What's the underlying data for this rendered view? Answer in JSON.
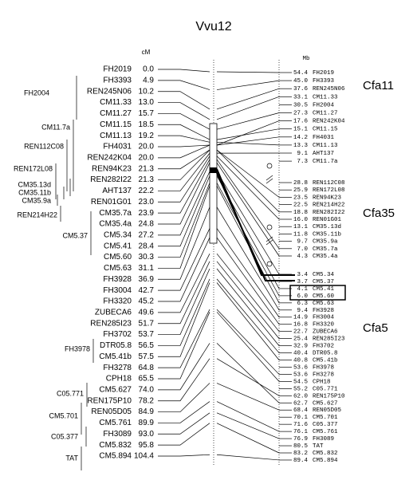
{
  "title": "Vvu12",
  "left_unit": "cM",
  "right_unit": "Mb",
  "markers": [
    {
      "name": "FH2019",
      "cM": "0.0"
    },
    {
      "name": "FH3393",
      "cM": "4.9"
    },
    {
      "name": "REN245N06",
      "cM": "10.2"
    },
    {
      "name": "CM11.33",
      "cM": "13.0"
    },
    {
      "name": "CM11.27",
      "cM": "15.7"
    },
    {
      "name": "CM11.15",
      "cM": "18.5"
    },
    {
      "name": "CM11.13",
      "cM": "19.2"
    },
    {
      "name": "FH4031",
      "cM": "20.0"
    },
    {
      "name": "REN242K04",
      "cM": "20.0"
    },
    {
      "name": "REN94K23",
      "cM": "21.3"
    },
    {
      "name": "REN282I22",
      "cM": "21.3"
    },
    {
      "name": "AHT137",
      "cM": "22.2"
    },
    {
      "name": "REN01G01",
      "cM": "23.0"
    },
    {
      "name": "CM35.7a",
      "cM": "23.9"
    },
    {
      "name": "CM35.4a",
      "cM": "24.8"
    },
    {
      "name": "CM5.34",
      "cM": "27.2"
    },
    {
      "name": "CM5.41",
      "cM": "28.4"
    },
    {
      "name": "CM5.60",
      "cM": "30.3"
    },
    {
      "name": "CM5.63",
      "cM": "31.1"
    },
    {
      "name": "FH3928",
      "cM": "36.9"
    },
    {
      "name": "FH3004",
      "cM": "42.7"
    },
    {
      "name": "FH3320",
      "cM": "45.2"
    },
    {
      "name": "ZUBECA6",
      "cM": "49.6"
    },
    {
      "name": "REN285I23",
      "cM": "51.7"
    },
    {
      "name": "FH3702",
      "cM": "53.7"
    },
    {
      "name": "DTR05.8",
      "cM": "56.5"
    },
    {
      "name": "CM5.41b",
      "cM": "57.5"
    },
    {
      "name": "FH3278",
      "cM": "64.8"
    },
    {
      "name": "CPH18",
      "cM": "65.5"
    },
    {
      "name": "CM5.627",
      "cM": "74.0"
    },
    {
      "name": "REN175P10",
      "cM": "78.2"
    },
    {
      "name": "REN05D05",
      "cM": "84.9"
    },
    {
      "name": "CM5.761",
      "cM": "89.9"
    },
    {
      "name": "FH3089",
      "cM": "93.0"
    },
    {
      "name": "CM5.832",
      "cM": "95.8"
    },
    {
      "name": "CM5.894",
      "cM": "104.4"
    }
  ],
  "unplaced": [
    "FH2004",
    "CM11.7a",
    "REN112C08",
    "REN172L08",
    "CM35.13d",
    "CM35.11b",
    "CM35.9a",
    "REN214H22",
    "CM5.37",
    "FH3978",
    "C05.771",
    "CM5.701",
    "C05.377",
    "TAT"
  ],
  "chromosomes": [
    {
      "label": "Cfa11",
      "markers": [
        {
          "mb": "54.4",
          "name": "FH2019"
        },
        {
          "mb": "45.0",
          "name": "FH3393"
        },
        {
          "mb": "37.6",
          "name": "REN245N06"
        },
        {
          "mb": "33.1",
          "name": "CM11.33"
        },
        {
          "mb": "30.5",
          "name": "FH2004"
        },
        {
          "mb": "27.3",
          "name": "CM11.27"
        },
        {
          "mb": "17.6",
          "name": "REN242K04"
        },
        {
          "mb": "15.1",
          "name": "CM11.15"
        },
        {
          "mb": "14.2",
          "name": "FH4031"
        },
        {
          "mb": "13.3",
          "name": "CM11.13"
        },
        {
          "mb": "9.1",
          "name": "AHT137"
        },
        {
          "mb": "7.3",
          "name": "CM11.7a"
        }
      ]
    },
    {
      "label": "Cfa35",
      "markers": [
        {
          "mb": "28.8",
          "name": "REN112C08"
        },
        {
          "mb": "25.9",
          "name": "REN172L08"
        },
        {
          "mb": "23.5",
          "name": "REN94K23"
        },
        {
          "mb": "22.5",
          "name": "REN214H22"
        },
        {
          "mb": "18.8",
          "name": "REN282I22"
        },
        {
          "mb": "16.0",
          "name": "REN01G01"
        },
        {
          "mb": "13.1",
          "name": "CM35.13d"
        },
        {
          "mb": "11.8",
          "name": "CM35.11b"
        },
        {
          "mb": "9.7",
          "name": "CM35.9a"
        },
        {
          "mb": "7.0",
          "name": "CM35.7a"
        },
        {
          "mb": "4.3",
          "name": "CM35.4a"
        }
      ]
    },
    {
      "label": "Cfa5",
      "markers": [
        {
          "mb": "3.4",
          "name": "CM5.34"
        },
        {
          "mb": "3.7",
          "name": "CM5.37"
        },
        {
          "mb": "4.1",
          "name": "CM5.41"
        },
        {
          "mb": "6.0",
          "name": "CM5.60"
        },
        {
          "mb": "6.3",
          "name": "CM5.63"
        },
        {
          "mb": "9.4",
          "name": "FH3928"
        },
        {
          "mb": "14.9",
          "name": "FH3004"
        },
        {
          "mb": "16.8",
          "name": "FH3320"
        },
        {
          "mb": "22.7",
          "name": "ZUBECA6"
        },
        {
          "mb": "25.4",
          "name": "REN285I23"
        },
        {
          "mb": "32.9",
          "name": "FH3702"
        },
        {
          "mb": "40.4",
          "name": "DTR05.8"
        },
        {
          "mb": "40.8",
          "name": "CM5.41b"
        },
        {
          "mb": "53.6",
          "name": "FH3978"
        },
        {
          "mb": "53.6",
          "name": "FH3278"
        },
        {
          "mb": "54.5",
          "name": "CPH18"
        },
        {
          "mb": "55.2",
          "name": "C05.771"
        },
        {
          "mb": "62.0",
          "name": "REN175P10"
        },
        {
          "mb": "62.7",
          "name": "CM5.627"
        },
        {
          "mb": "68.4",
          "name": "REN05D05"
        },
        {
          "mb": "70.1",
          "name": "CM5.701"
        },
        {
          "mb": "71.6",
          "name": "C05.377"
        },
        {
          "mb": "76.1",
          "name": "CM5.761"
        },
        {
          "mb": "76.9",
          "name": "FH3089"
        },
        {
          "mb": "80.5",
          "name": "TAT"
        },
        {
          "mb": "83.2",
          "name": "CM5.832"
        },
        {
          "mb": "89.4",
          "name": "CM5.894"
        }
      ]
    }
  ]
}
